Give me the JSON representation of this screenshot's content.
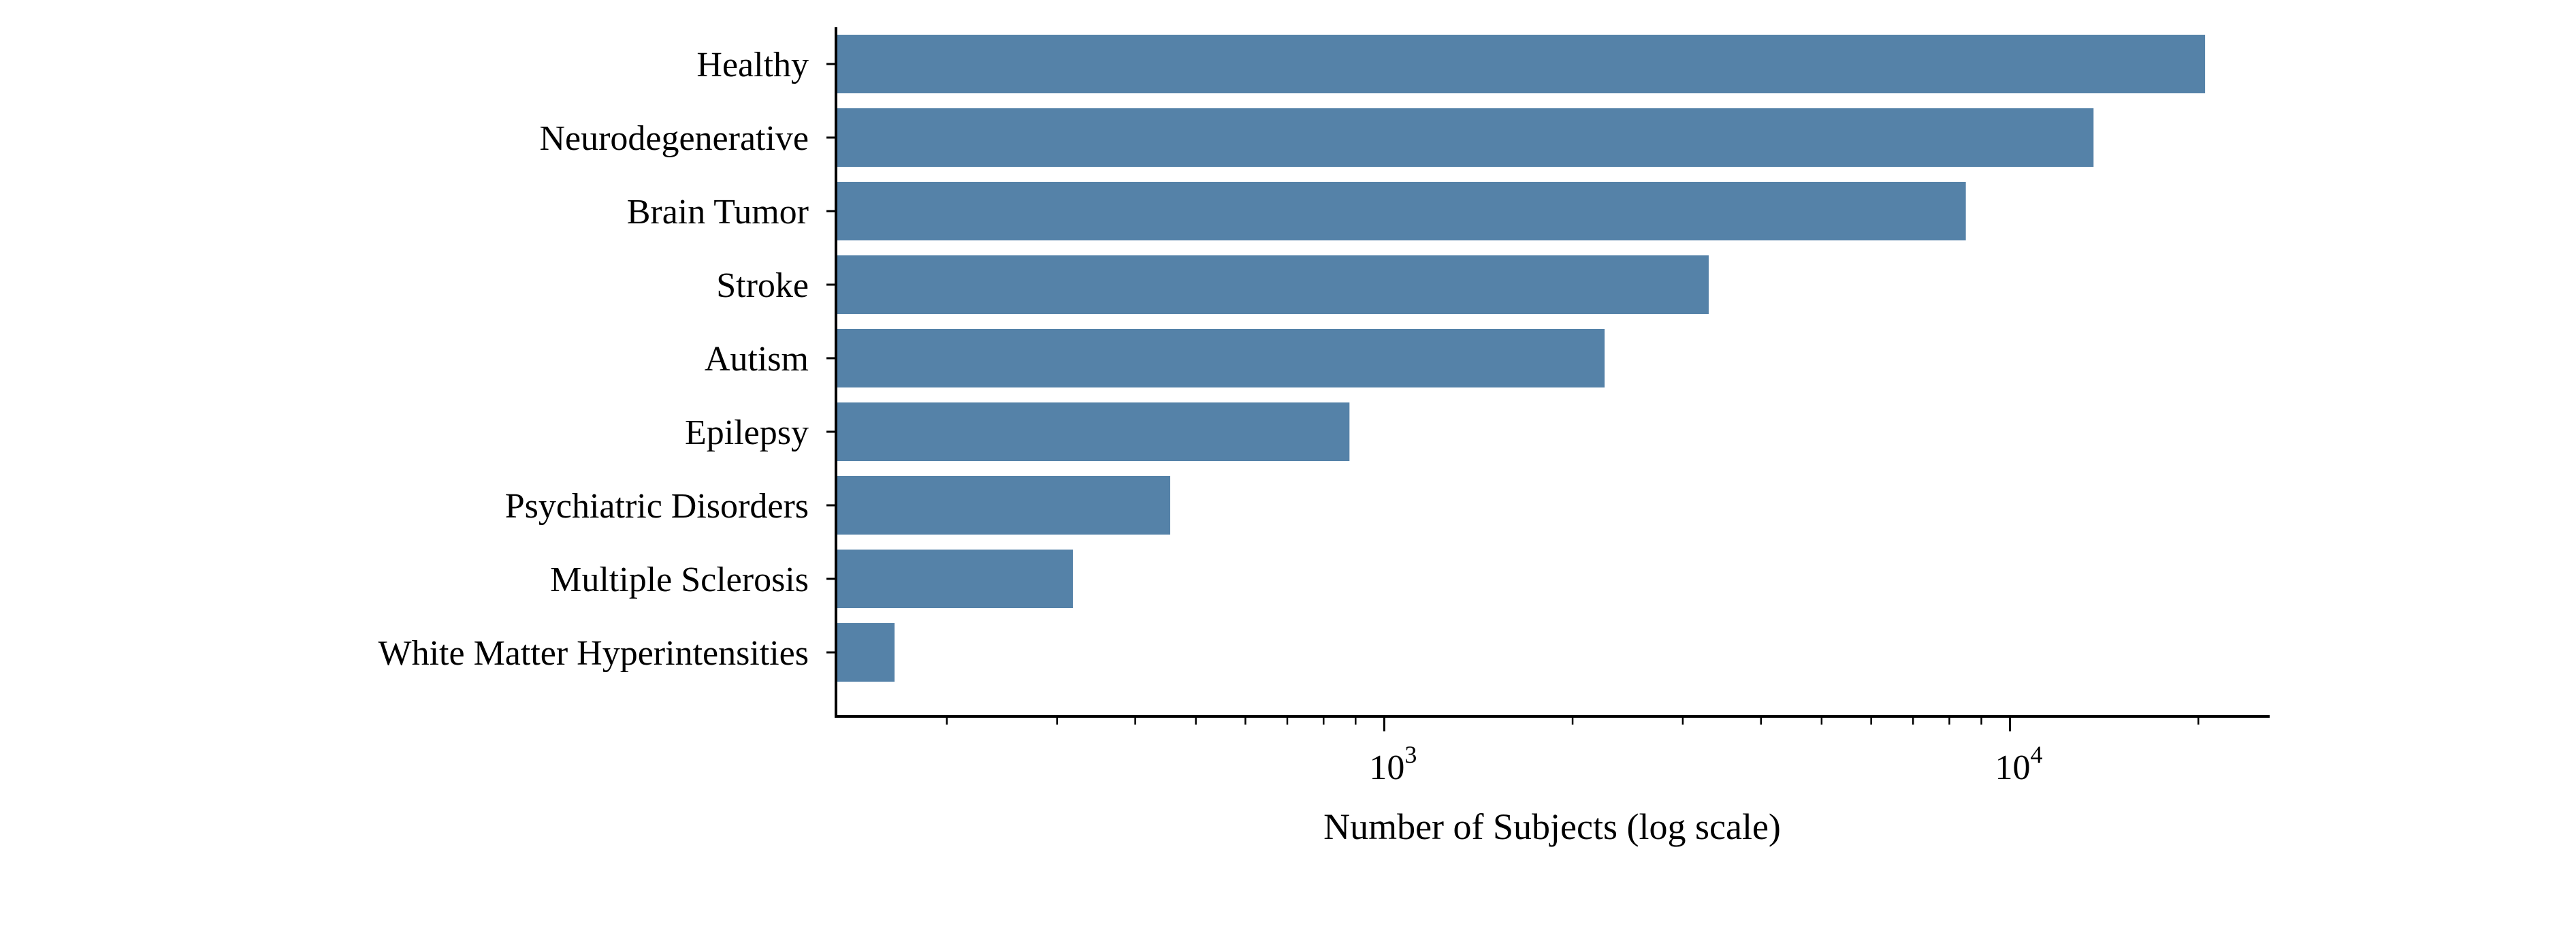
{
  "chart_data": {
    "type": "bar",
    "orientation": "horizontal",
    "categories": [
      "Healthy",
      "Neurodegenerative",
      "Brain Tumor",
      "Stroke",
      "Autism",
      "Epilepsy",
      "Psychiatric Disorders",
      "Multiple Sclerosis",
      "White Matter Hyperintensities"
    ],
    "values": [
      20500,
      13600,
      8500,
      3300,
      2250,
      880,
      455,
      318,
      165
    ],
    "title": "",
    "xlabel": "Number of Subjects (log scale)",
    "ylabel": "",
    "xscale": "log",
    "xlim": [
      133,
      26000
    ],
    "x_ticks": [
      {
        "value": 1000,
        "base": "10",
        "exp": "3"
      },
      {
        "value": 10000,
        "base": "10",
        "exp": "4"
      }
    ],
    "x_minor_ticks": [
      200,
      300,
      400,
      500,
      600,
      700,
      800,
      900,
      2000,
      3000,
      4000,
      5000,
      6000,
      7000,
      8000,
      9000,
      20000
    ],
    "bar_color": "#5582a8",
    "grid": false
  }
}
